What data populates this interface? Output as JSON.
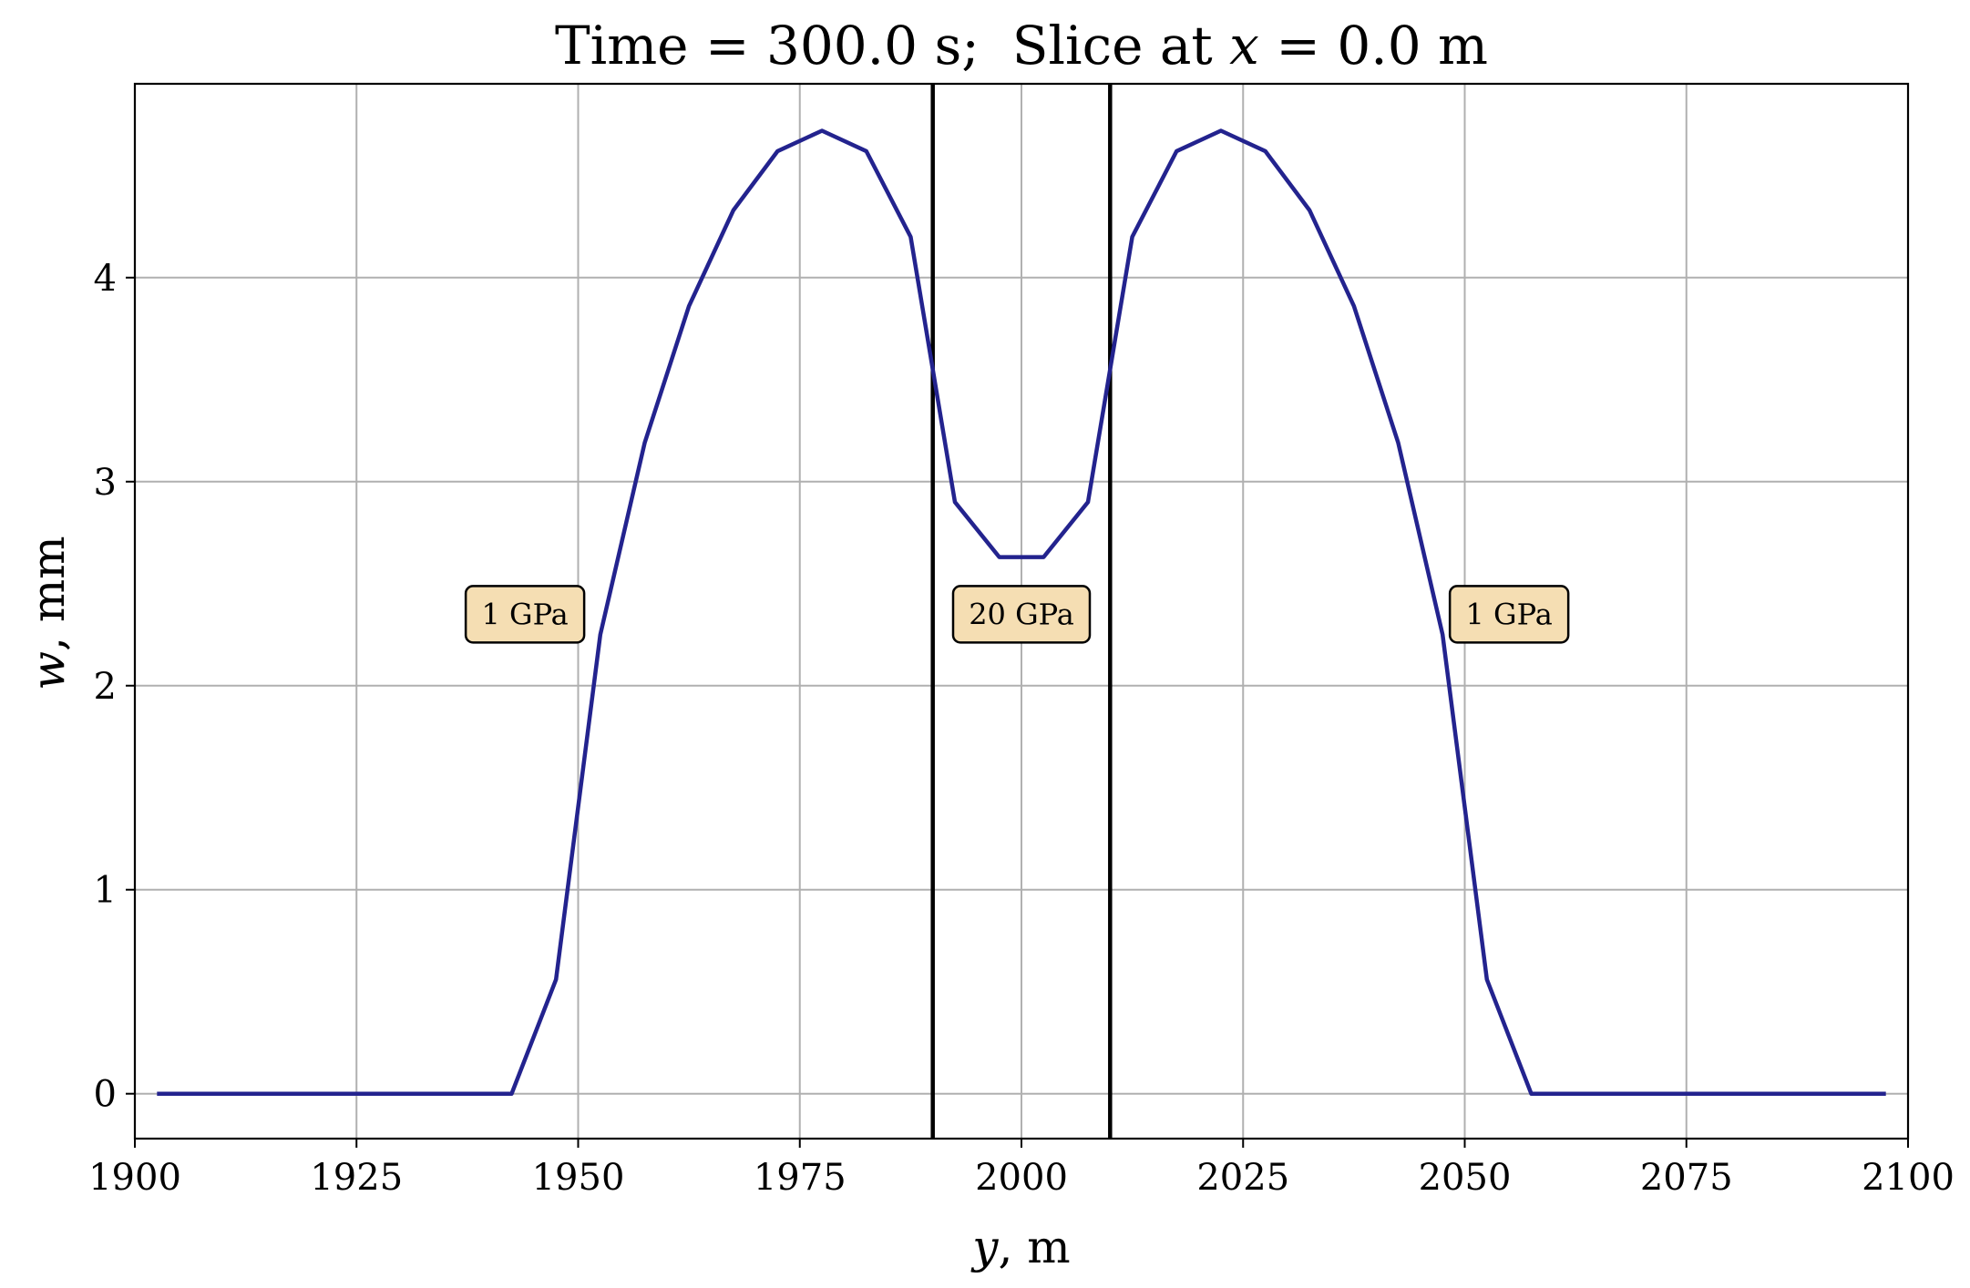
{
  "chart_data": {
    "type": "line",
    "title": {
      "time_label": "Time = 300.0 s;",
      "slice_prefix": "Slice at ",
      "slice_var": "x",
      "slice_suffix": " = 0.0 m"
    },
    "xlabel": {
      "var": "y",
      "unit": ", m"
    },
    "ylabel": {
      "var": "w",
      "unit": ", mm"
    },
    "xlim": [
      1900,
      2100
    ],
    "ylim": [
      -0.22,
      4.95
    ],
    "x_ticks": [
      1900,
      1925,
      1950,
      1975,
      2000,
      2025,
      2050,
      2075,
      2100
    ],
    "x_tick_labels": [
      "1900",
      "1925",
      "1950",
      "1975",
      "2000",
      "2025",
      "2050",
      "2075",
      "2100"
    ],
    "y_ticks": [
      0,
      1,
      2,
      3,
      4
    ],
    "y_tick_labels": [
      "0",
      "1",
      "2",
      "3",
      "4"
    ],
    "grid": true,
    "series": [
      {
        "color": "#23238e",
        "x": [
          1902.5,
          1907.5,
          1912.5,
          1917.5,
          1922.5,
          1927.5,
          1932.5,
          1937.5,
          1942.5,
          1947.5,
          1952.5,
          1957.5,
          1962.5,
          1967.5,
          1972.5,
          1977.5,
          1982.5,
          1987.5,
          1992.5,
          1997.5,
          2002.5,
          2007.5,
          2012.5,
          2017.5,
          2022.5,
          2027.5,
          2032.5,
          2037.5,
          2042.5,
          2047.5,
          2052.5,
          2057.5,
          2062.5,
          2067.5,
          2072.5,
          2077.5,
          2082.5,
          2087.5,
          2092.5,
          2097.5
        ],
        "y": [
          0,
          0,
          0,
          0,
          0,
          0,
          0,
          0,
          0,
          0.56,
          2.25,
          3.19,
          3.86,
          4.33,
          4.62,
          4.72,
          4.62,
          4.2,
          2.9,
          2.63,
          2.63,
          2.9,
          4.2,
          4.62,
          4.72,
          4.62,
          4.33,
          3.86,
          3.19,
          2.25,
          0.56,
          0,
          0,
          0,
          0,
          0,
          0,
          0,
          0,
          0
        ]
      }
    ],
    "vlines": [
      1990,
      2010
    ],
    "vline_color": "#000000",
    "annotations": [
      {
        "text": "1 GPa",
        "x": 1944,
        "y": 2.35
      },
      {
        "text": "20 GPa",
        "x": 2000,
        "y": 2.35
      },
      {
        "text": "1 GPa",
        "x": 2055,
        "y": 2.35
      }
    ],
    "annotation_fill": "#f5deb3"
  }
}
